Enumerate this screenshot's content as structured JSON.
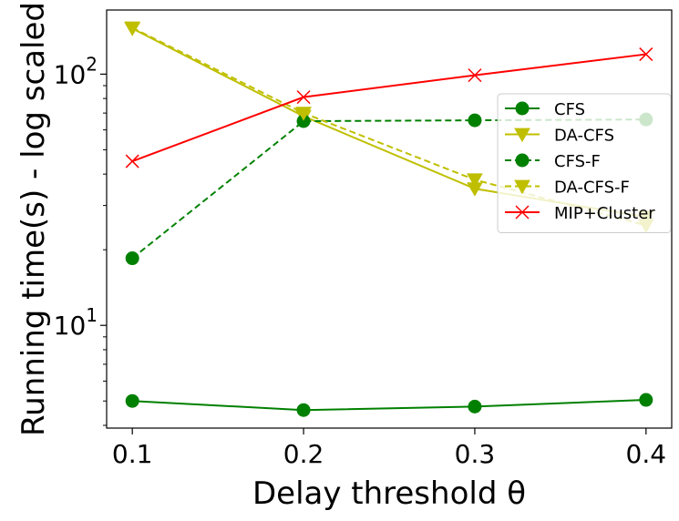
{
  "chart_data": {
    "type": "line",
    "title": "",
    "xlabel": "Delay threshold θ",
    "ylabel": "Running time(s) - log scaled",
    "yscale": "log",
    "x": [
      0.1,
      0.2,
      0.3,
      0.4
    ],
    "x_tick_labels": [
      "0.1",
      "0.2",
      "0.3",
      "0.4"
    ],
    "xlim": [
      0.085,
      0.415
    ],
    "ylim": [
      3.9,
      180
    ],
    "y_major_ticks": [
      {
        "value": 10,
        "base": "10",
        "exp": "1"
      },
      {
        "value": 100,
        "base": "10",
        "exp": "2"
      }
    ],
    "grid": false,
    "legend_position": "right",
    "series": [
      {
        "name": "CFS",
        "values": [
          5.0,
          4.6,
          4.75,
          5.05
        ],
        "color": "#008000",
        "linestyle": "solid",
        "marker": "circle"
      },
      {
        "name": "DA-CFS",
        "values": [
          152,
          68,
          35,
          27
        ],
        "color": "#bfbf00",
        "linestyle": "solid",
        "marker": "triangle-down"
      },
      {
        "name": "CFS-F",
        "values": [
          18.5,
          65,
          65.5,
          66
        ],
        "color": "#008000",
        "linestyle": "dashed",
        "marker": "circle"
      },
      {
        "name": "DA-CFS-F",
        "values": [
          153,
          70,
          38,
          25
        ],
        "color": "#bfbf00",
        "linestyle": "dashed",
        "marker": "triangle-down"
      },
      {
        "name": "MIP+Cluster",
        "values": [
          45,
          81,
          99,
          120
        ],
        "color": "#ff0000",
        "linestyle": "solid",
        "marker": "x"
      }
    ]
  }
}
